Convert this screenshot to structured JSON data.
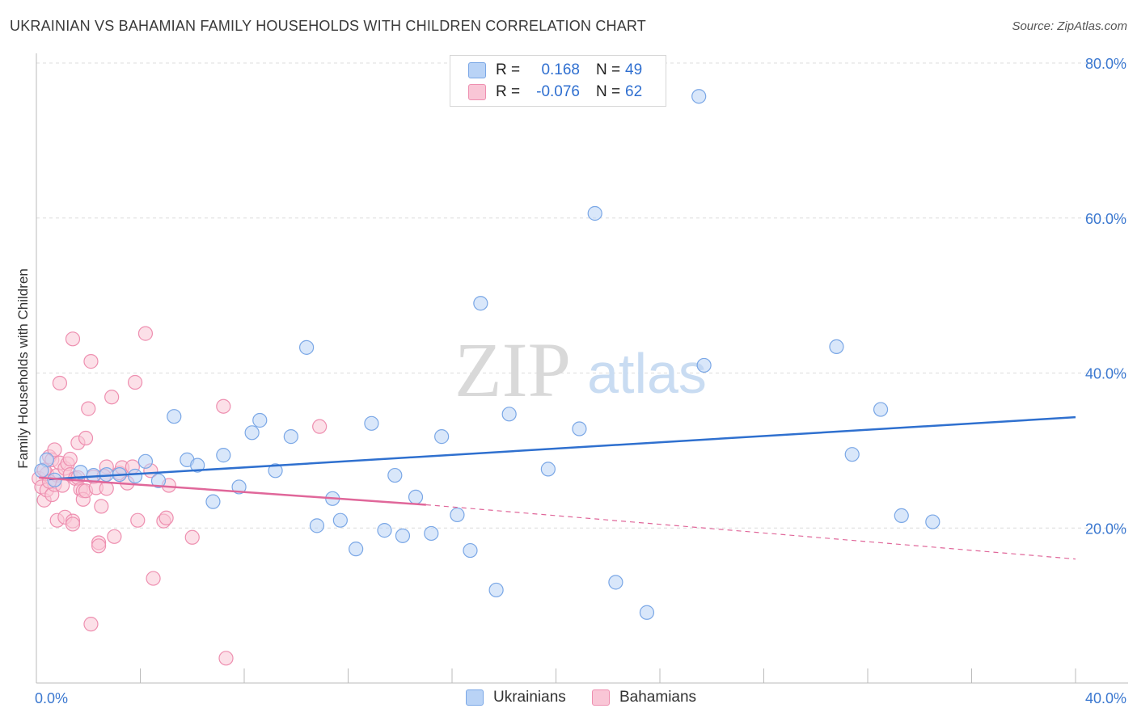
{
  "title": "UKRAINIAN VS BAHAMIAN FAMILY HOUSEHOLDS WITH CHILDREN CORRELATION CHART",
  "source": "Source: ZipAtlas.com",
  "watermark": {
    "zip": "ZIP",
    "atlas": "atlas"
  },
  "legend": {
    "rows": [
      {
        "r_label": "R =",
        "r_value": "0.168",
        "n_label": "N =",
        "n_value": "49"
      },
      {
        "r_label": "R =",
        "r_value": "-0.076",
        "n_label": "N =",
        "n_value": "62"
      }
    ]
  },
  "bottom_legend": {
    "series0": "Ukrainians",
    "series1": "Bahamians"
  },
  "colors": {
    "ukrainians_fill": "#b9d3f6",
    "ukrainians_stroke": "#7aa7e6",
    "ukrainians_line": "#2f70cf",
    "bahamians_fill": "#f9c6d6",
    "bahamians_stroke": "#ee8fb0",
    "bahamians_line": "#e0679a",
    "tick_label": "#3b78d0",
    "grid": "#dcdcdc"
  },
  "chart_data": {
    "type": "scatter",
    "title": "UKRAINIAN VS BAHAMIAN FAMILY HOUSEHOLDS WITH CHILDREN CORRELATION CHART",
    "xlabel": "",
    "ylabel": "Family Households with Children",
    "xlim": [
      0,
      40
    ],
    "ylim": [
      0,
      80
    ],
    "x_tick_labels": [
      "0.0%",
      "40.0%"
    ],
    "y_ticks": [
      20,
      40,
      60,
      80
    ],
    "y_tick_labels": [
      "20.0%",
      "40.0%",
      "60.0%",
      "80.0%"
    ],
    "grid": true,
    "legend_position": "top-center",
    "series": [
      {
        "name": "Ukrainians",
        "points": [
          [
            0.4,
            28.8
          ],
          [
            0.7,
            26.2
          ],
          [
            1.7,
            27.2
          ],
          [
            2.2,
            26.8
          ],
          [
            2.7,
            26.9
          ],
          [
            3.2,
            26.9
          ],
          [
            3.8,
            26.7
          ],
          [
            4.2,
            28.6
          ],
          [
            4.7,
            26.1
          ],
          [
            5.3,
            34.4
          ],
          [
            5.8,
            28.8
          ],
          [
            6.2,
            28.1
          ],
          [
            6.8,
            23.4
          ],
          [
            7.2,
            29.4
          ],
          [
            7.8,
            25.3
          ],
          [
            8.3,
            32.3
          ],
          [
            8.6,
            33.9
          ],
          [
            9.2,
            27.4
          ],
          [
            9.8,
            31.8
          ],
          [
            10.4,
            43.3
          ],
          [
            10.8,
            20.3
          ],
          [
            11.4,
            23.8
          ],
          [
            11.7,
            21.0
          ],
          [
            12.3,
            17.3
          ],
          [
            12.9,
            33.5
          ],
          [
            13.4,
            19.7
          ],
          [
            13.8,
            26.8
          ],
          [
            14.1,
            19.0
          ],
          [
            14.6,
            24.0
          ],
          [
            15.2,
            19.3
          ],
          [
            15.6,
            31.8
          ],
          [
            16.2,
            21.7
          ],
          [
            16.7,
            17.1
          ],
          [
            17.1,
            49.0
          ],
          [
            17.7,
            12.0
          ],
          [
            18.2,
            34.7
          ],
          [
            19.7,
            27.6
          ],
          [
            20.9,
            32.8
          ],
          [
            21.5,
            60.6
          ],
          [
            22.3,
            13.0
          ],
          [
            23.5,
            9.1
          ],
          [
            25.5,
            75.7
          ],
          [
            25.7,
            41.0
          ],
          [
            30.8,
            43.4
          ],
          [
            31.4,
            29.5
          ],
          [
            32.5,
            35.3
          ],
          [
            33.3,
            21.6
          ],
          [
            34.5,
            20.8
          ],
          [
            0.2,
            27.4
          ]
        ],
        "trend": {
          "x": [
            0.5,
            40
          ],
          "y": [
            26.3,
            34.3
          ]
        }
      },
      {
        "name": "Bahamians",
        "points": [
          [
            0.1,
            26.4
          ],
          [
            0.2,
            25.3
          ],
          [
            0.3,
            23.6
          ],
          [
            0.4,
            27.0
          ],
          [
            0.4,
            24.9
          ],
          [
            0.5,
            29.2
          ],
          [
            0.6,
            28.8
          ],
          [
            0.6,
            24.3
          ],
          [
            0.7,
            30.1
          ],
          [
            0.7,
            25.6
          ],
          [
            0.8,
            26.8
          ],
          [
            0.8,
            21.0
          ],
          [
            0.9,
            28.4
          ],
          [
            0.9,
            38.7
          ],
          [
            1.0,
            25.5
          ],
          [
            1.1,
            27.7
          ],
          [
            1.1,
            21.4
          ],
          [
            1.2,
            28.3
          ],
          [
            1.3,
            26.9
          ],
          [
            1.3,
            28.9
          ],
          [
            1.4,
            20.9
          ],
          [
            1.4,
            20.5
          ],
          [
            1.4,
            44.4
          ],
          [
            1.5,
            26.4
          ],
          [
            1.6,
            26.5
          ],
          [
            1.6,
            31.0
          ],
          [
            1.7,
            25.0
          ],
          [
            1.8,
            24.8
          ],
          [
            1.8,
            23.7
          ],
          [
            1.9,
            24.8
          ],
          [
            1.9,
            31.6
          ],
          [
            2.0,
            35.4
          ],
          [
            2.1,
            7.6
          ],
          [
            2.1,
            41.5
          ],
          [
            2.2,
            26.6
          ],
          [
            2.3,
            25.2
          ],
          [
            2.4,
            18.1
          ],
          [
            2.4,
            17.7
          ],
          [
            2.5,
            22.8
          ],
          [
            2.7,
            27.9
          ],
          [
            2.7,
            25.1
          ],
          [
            2.9,
            36.9
          ],
          [
            3.0,
            18.9
          ],
          [
            3.2,
            27.1
          ],
          [
            3.3,
            27.8
          ],
          [
            3.5,
            25.8
          ],
          [
            3.7,
            27.9
          ],
          [
            3.8,
            38.8
          ],
          [
            3.9,
            21.0
          ],
          [
            4.2,
            45.1
          ],
          [
            4.4,
            27.4
          ],
          [
            4.5,
            13.5
          ],
          [
            4.9,
            20.9
          ],
          [
            5.0,
            21.3
          ],
          [
            5.1,
            25.5
          ],
          [
            6.0,
            18.8
          ],
          [
            7.2,
            35.7
          ],
          [
            7.3,
            3.2
          ],
          [
            10.9,
            33.1
          ],
          [
            0.3,
            27.5
          ],
          [
            0.5,
            26.0
          ],
          [
            2.6,
            26.7
          ]
        ],
        "trend": {
          "x": [
            0.1,
            15
          ],
          "y": [
            26.5,
            23.0
          ]
        },
        "trend_extension": {
          "x": [
            15,
            40
          ],
          "y": [
            23.0,
            16.0
          ]
        }
      }
    ]
  }
}
